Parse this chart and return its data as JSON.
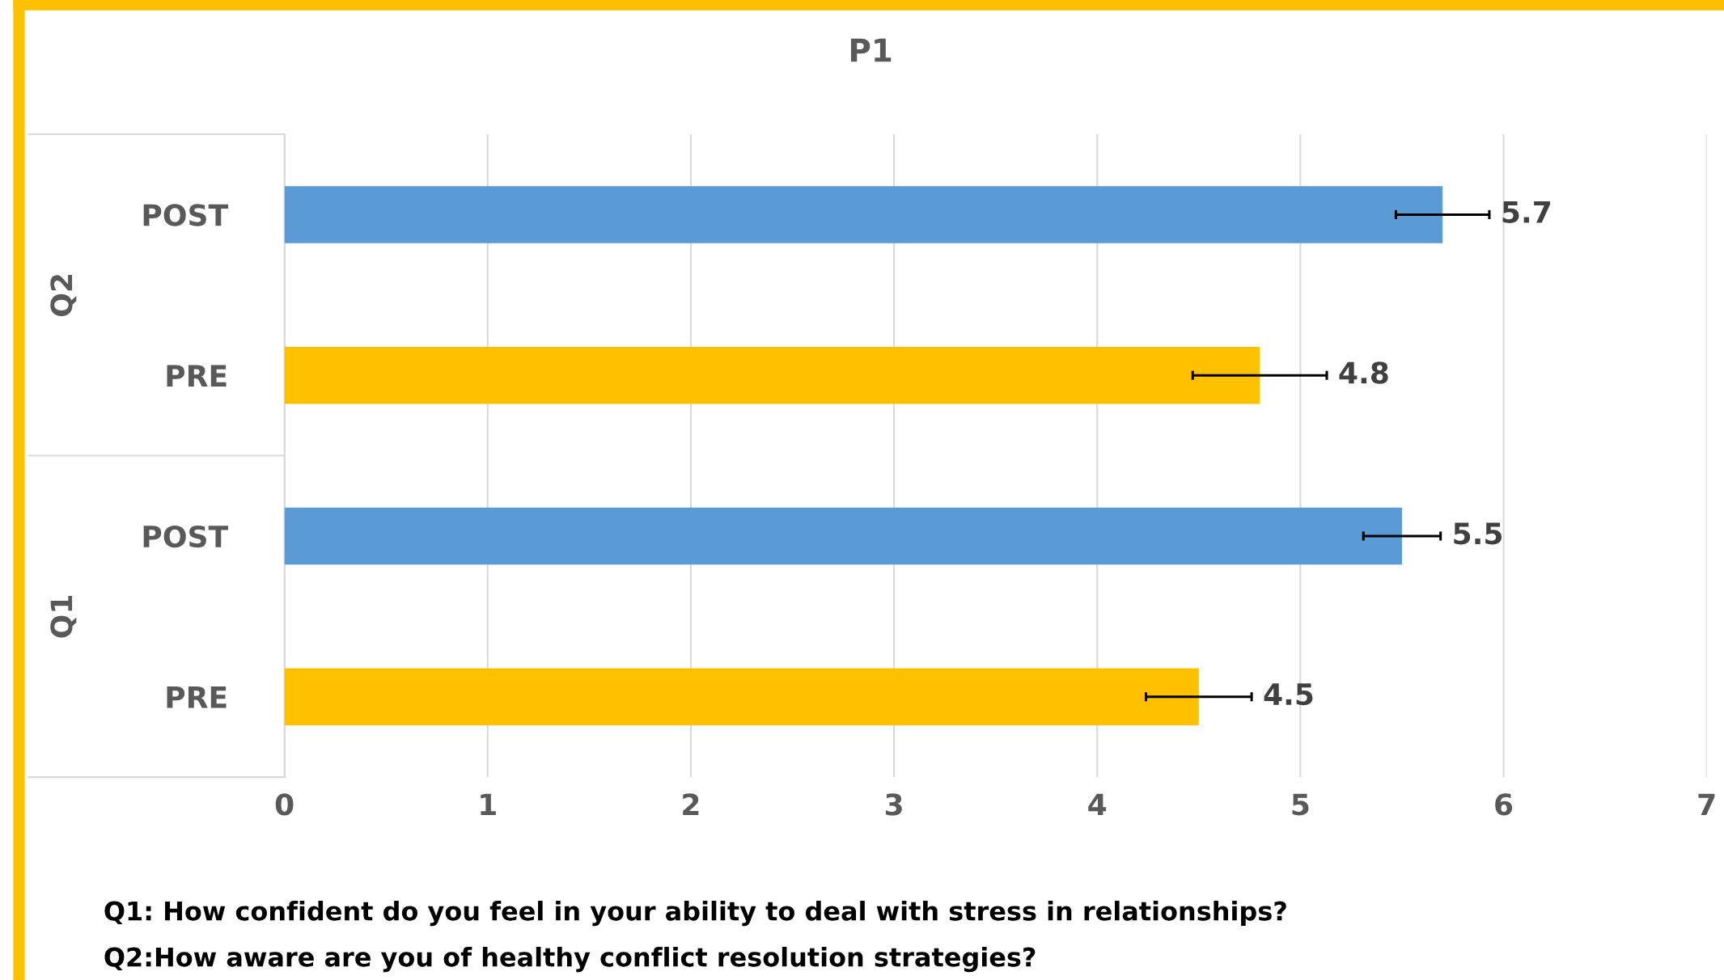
{
  "chart_data": {
    "type": "bar",
    "orientation": "horizontal",
    "title": "P1",
    "categories": [
      "POST",
      "PRE",
      "POST",
      "PRE"
    ],
    "values": [
      5.7,
      4.8,
      5.5,
      4.5
    ],
    "colors": [
      "#5b9bd5",
      "#ffc000",
      "#5b9bd5",
      "#ffc000"
    ],
    "errors": [
      0.23,
      0.33,
      0.19,
      0.26
    ],
    "data_labels": true,
    "xlim": [
      0,
      7
    ],
    "xticks": [
      0,
      1,
      2,
      3,
      4,
      5,
      6,
      7
    ],
    "grid": "x",
    "annotations": [
      "Q2",
      "Q1",
      "Q1: How confident do you feel in your ability to deal with stress in relationships?",
      "Q2:How aware are you of healthy conflict resolution strategies?"
    ]
  }
}
